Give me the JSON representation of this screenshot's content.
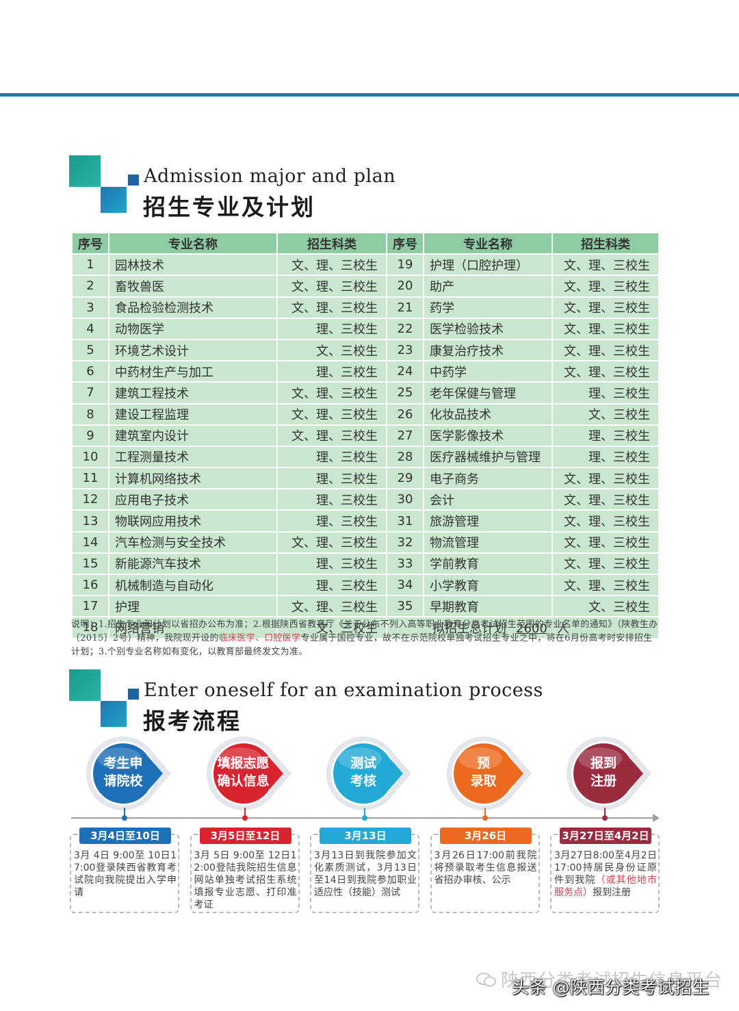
{
  "section1": {
    "title_en": "Admission major and plan",
    "title_cn": "招生专业及计划"
  },
  "table": {
    "headers": [
      "序号",
      "专业名称",
      "招生科类",
      "序号",
      "专业名称",
      "招生科类"
    ],
    "left": [
      {
        "no": "1",
        "name": "园林技术",
        "cat": "文、理、三校生"
      },
      {
        "no": "2",
        "name": "畜牧兽医",
        "cat": "文、理、三校生"
      },
      {
        "no": "3",
        "name": "食品检验检测技术",
        "cat": "文、理、三校生"
      },
      {
        "no": "4",
        "name": "动物医学",
        "cat": "理、三校生"
      },
      {
        "no": "5",
        "name": "环境艺术设计",
        "cat": "文、三校生"
      },
      {
        "no": "6",
        "name": "中药材生产与加工",
        "cat": "理、三校生"
      },
      {
        "no": "7",
        "name": "建筑工程技术",
        "cat": "文、理、三校生"
      },
      {
        "no": "8",
        "name": "建设工程监理",
        "cat": "文、理、三校生"
      },
      {
        "no": "9",
        "name": "建筑室内设计",
        "cat": "文、理、三校生"
      },
      {
        "no": "10",
        "name": "工程测量技术",
        "cat": "理、三校生"
      },
      {
        "no": "11",
        "name": "计算机网络技术",
        "cat": "理、三校生"
      },
      {
        "no": "12",
        "name": "应用电子技术",
        "cat": "理、三校生"
      },
      {
        "no": "13",
        "name": "物联网应用技术",
        "cat": "理、三校生"
      },
      {
        "no": "14",
        "name": "汽车检测与安全技术",
        "cat": "文、理、三校生"
      },
      {
        "no": "15",
        "name": "新能源汽车技术",
        "cat": "理、三校生"
      },
      {
        "no": "16",
        "name": "机械制造与自动化",
        "cat": "理、三校生"
      },
      {
        "no": "17",
        "name": "护理",
        "cat": "文、理、三校生"
      },
      {
        "no": "18",
        "name": "网络营销",
        "cat": "文、三校生"
      }
    ],
    "right": [
      {
        "no": "19",
        "name": "护理（口腔护理）",
        "cat": "文、理、三校生"
      },
      {
        "no": "20",
        "name": "助产",
        "cat": "文、理、三校生"
      },
      {
        "no": "21",
        "name": "药学",
        "cat": "文、理、三校生"
      },
      {
        "no": "22",
        "name": "医学检验技术",
        "cat": "文、理、三校生"
      },
      {
        "no": "23",
        "name": "康复治疗技术",
        "cat": "文、理、三校生"
      },
      {
        "no": "24",
        "name": "中药学",
        "cat": "文、理、三校生"
      },
      {
        "no": "25",
        "name": "老年保健与管理",
        "cat": "理、三校生"
      },
      {
        "no": "26",
        "name": "化妆品技术",
        "cat": "文、三校生"
      },
      {
        "no": "27",
        "name": "医学影像技术",
        "cat": "理、三校生"
      },
      {
        "no": "28",
        "name": "医疗器械维护与管理",
        "cat": "理、三校生"
      },
      {
        "no": "29",
        "name": "电子商务",
        "cat": "文、理、三校生"
      },
      {
        "no": "30",
        "name": "会计",
        "cat": "文、理、三校生"
      },
      {
        "no": "31",
        "name": "旅游管理",
        "cat": "文、理、三校生"
      },
      {
        "no": "32",
        "name": "物流管理",
        "cat": "文、理、三校生"
      },
      {
        "no": "33",
        "name": "学前教育",
        "cat": "文、理、三校生"
      },
      {
        "no": "34",
        "name": "小学教育",
        "cat": "文、理、三校生"
      },
      {
        "no": "35",
        "name": "早期教育",
        "cat": "文、三校生"
      }
    ],
    "total_prefix": "拟招生总计划",
    "total_value": "2600",
    "total_unit": "人"
  },
  "note": {
    "part1": "说明：1.招生专业和计划以省招办公布为准；2.根据陕西省教育厅《关于公布不列入高等职业教育分类考试招生范围的专业名单的通知》（陕教生办〔2015〕2号）精神，我院现开设的",
    "red": "临床医学、口腔医学",
    "part2": "专业属于国控专业，故不在示范院校单独考试招生专业之中，将在6月份高考时安排招生计划；3.个别专业名称如有变化，以教育部最终发文为准。"
  },
  "section2": {
    "title_en": "Enter oneself for an examination process",
    "title_cn": "报考流程"
  },
  "steps": [
    {
      "line1": "考生申",
      "line2": "请院校",
      "date": "3月4日至10日",
      "text": "3月 4日 9:00至 10日17:00登录陕西省教育考试院向我院提出入学申请",
      "text_red": "",
      "text_tail": "",
      "color": "#1d6fb8"
    },
    {
      "line1": "填报志愿",
      "line2": "确认信息",
      "date": "3月5日至12日",
      "text": "3月 5日 9:00至 12日12:00登陆我院招生信息网站单独考试招生系统填报专业志愿、打印准考证",
      "text_red": "",
      "text_tail": "",
      "color": "#d9232f"
    },
    {
      "line1": "测试",
      "line2": "考核",
      "date": "3月13日",
      "text": "3月13日到我院参加文化素质测试，3月13日至14日到我院参加职业适应性（技能）测试",
      "text_red": "",
      "text_tail": "",
      "color": "#23a9d6"
    },
    {
      "line1": "预",
      "line2": "录取",
      "date": "3月26日",
      "text": "3月26日17:00前我院将预录取考生信息报送省招办审核、公示",
      "text_red": "",
      "text_tail": "",
      "color": "#ec6a1f"
    },
    {
      "line1": "报到",
      "line2": "注册",
      "date": "3月27日至4月2日",
      "text": "3月27日8:00至4月2日17:00持居民身份证原件到我院",
      "text_red": "（或其他地市服务点）",
      "text_tail": "报到注册",
      "color": "#9b2c40"
    }
  ],
  "watermark": "陕西分类考试招生信息平台",
  "footer": "头条 @陕西分类考试招生"
}
